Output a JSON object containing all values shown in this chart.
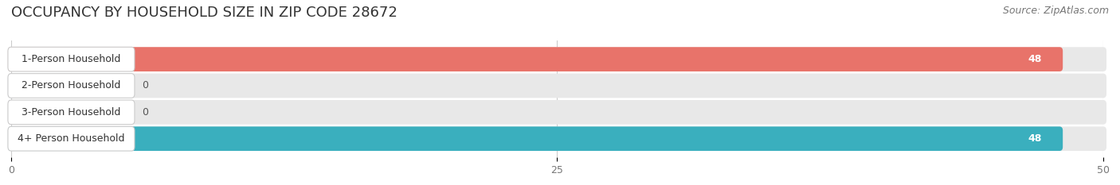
{
  "title": "OCCUPANCY BY HOUSEHOLD SIZE IN ZIP CODE 28672",
  "source": "Source: ZipAtlas.com",
  "categories": [
    "1-Person Household",
    "2-Person Household",
    "3-Person Household",
    "4+ Person Household"
  ],
  "values": [
    48,
    0,
    0,
    48
  ],
  "bar_colors": [
    "#E8736A",
    "#A8B8D8",
    "#C4A8D0",
    "#3AAFBE"
  ],
  "xlim_data": [
    0,
    50
  ],
  "xticks": [
    0,
    25,
    50
  ],
  "bg_color": "#ffffff",
  "bar_bg_color": "#e8e8e8",
  "label_bg_color": "#ffffff",
  "title_fontsize": 13,
  "source_fontsize": 9,
  "label_fontsize": 9,
  "value_fontsize": 9
}
